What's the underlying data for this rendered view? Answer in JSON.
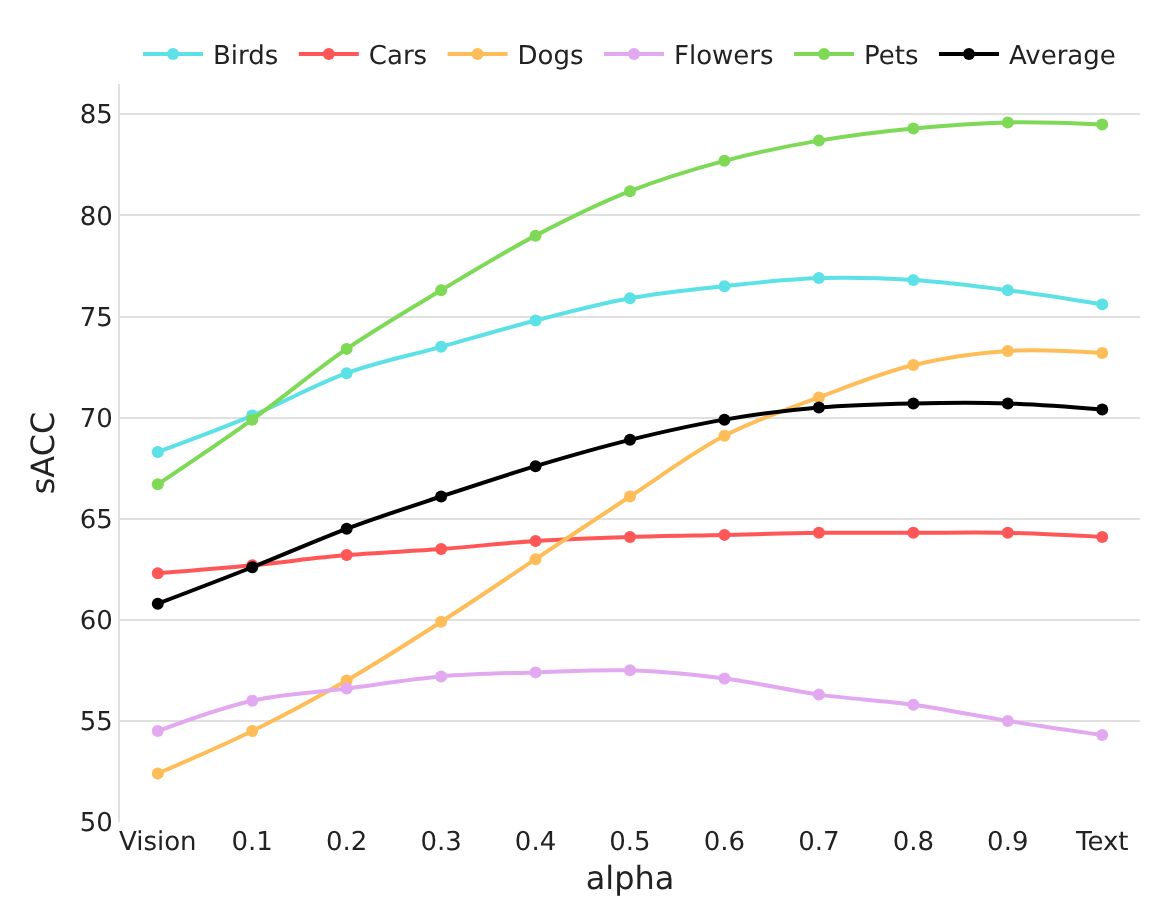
{
  "chart_data": {
    "type": "line",
    "xlabel": "alpha",
    "ylabel": "sACC",
    "categories": [
      "Vision",
      "0.1",
      "0.2",
      "0.3",
      "0.4",
      "0.5",
      "0.6",
      "0.7",
      "0.8",
      "0.9",
      "Text"
    ],
    "series": [
      {
        "name": "Birds",
        "color": "#5ce1e6",
        "values": [
          68.3,
          70.1,
          72.2,
          73.5,
          74.8,
          75.9,
          76.5,
          76.9,
          76.8,
          76.3,
          75.6
        ]
      },
      {
        "name": "Cars",
        "color": "#ff5757",
        "values": [
          62.3,
          62.7,
          63.2,
          63.5,
          63.9,
          64.1,
          64.2,
          64.3,
          64.3,
          64.3,
          64.1
        ]
      },
      {
        "name": "Dogs",
        "color": "#ffbd59",
        "values": [
          52.4,
          54.5,
          57.0,
          59.9,
          63.0,
          66.1,
          69.1,
          71.0,
          72.6,
          73.3,
          73.2
        ]
      },
      {
        "name": "Flowers",
        "color": "#e2a9f1",
        "values": [
          54.5,
          56.0,
          56.6,
          57.2,
          57.4,
          57.5,
          57.1,
          56.3,
          55.8,
          55.0,
          54.3
        ]
      },
      {
        "name": "Pets",
        "color": "#7ed957",
        "values": [
          66.7,
          69.9,
          73.4,
          76.3,
          79.0,
          81.2,
          82.7,
          83.7,
          84.3,
          84.6,
          84.5
        ]
      },
      {
        "name": "Average",
        "color": "#000000",
        "values": [
          60.8,
          62.6,
          64.5,
          66.1,
          67.6,
          68.9,
          69.9,
          70.5,
          70.7,
          70.7,
          70.4
        ]
      }
    ],
    "ylim": [
      50,
      86.5
    ],
    "yticks": [
      50,
      55,
      60,
      65,
      70,
      75,
      80,
      85
    ],
    "grid": "y",
    "legend": "top",
    "marker": "circle",
    "line_style": "solid"
  }
}
